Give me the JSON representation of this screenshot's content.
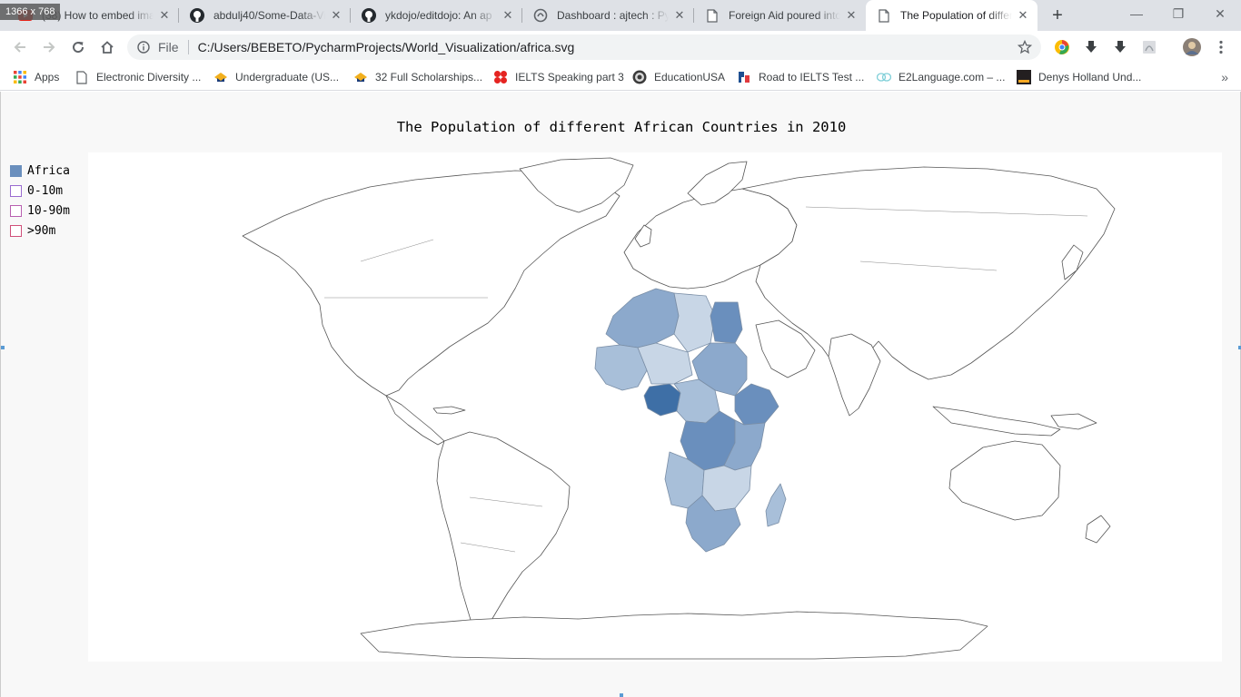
{
  "window": {
    "size_badge": "1366 x 768",
    "new_tab_label": "+",
    "minimize_label": "—",
    "maximize_label": "❐",
    "close_label": "✕"
  },
  "tabs": [
    {
      "title": "(38) How to embed ima",
      "icon": "youtube-icon"
    },
    {
      "title": "abdulj40/Some-Data-Vi",
      "icon": "github-icon"
    },
    {
      "title": "ykdojo/editdojo: An ap",
      "icon": "github-icon"
    },
    {
      "title": "Dashboard : ajtech : Pyt",
      "icon": "pythonanywhere-icon"
    },
    {
      "title": "Foreign Aid poured into",
      "icon": "page-icon"
    },
    {
      "title": "The Population of differ",
      "icon": "page-icon",
      "active": true
    }
  ],
  "toolbar": {
    "scheme_label": "File",
    "url": "C:/Users/BEBETO/PycharmProjects/World_Visualization/africa.svg"
  },
  "bookmarks": [
    {
      "label": "Apps",
      "icon": "apps-grid-icon"
    },
    {
      "label": "Electronic Diversity ...",
      "icon": "page-icon"
    },
    {
      "label": "Undergraduate (US...",
      "icon": "scholarship-icon"
    },
    {
      "label": "32 Full Scholarships...",
      "icon": "scholarship-icon"
    },
    {
      "label": "IELTS Speaking part 3",
      "icon": "ielts-icon"
    },
    {
      "label": "EducationUSA",
      "icon": "seal-icon"
    },
    {
      "label": "Road to IELTS Test ...",
      "icon": "road-icon"
    },
    {
      "label": "E2Language.com – ...",
      "icon": "e2-icon"
    },
    {
      "label": "Denys Holland Und...",
      "icon": "uol-icon"
    }
  ],
  "bookmarks_more": "»",
  "chart": {
    "title": "The Population of different African Countries in 2010",
    "legend": [
      {
        "label": "Africa",
        "color": "#6a8fbd",
        "filled": true
      },
      {
        "label": "0-10m",
        "color": "#9a6bd0",
        "filled": false
      },
      {
        "label": "10-90m",
        "color": "#b85fb0",
        "filled": false
      },
      {
        "label": ">90m",
        "color": "#d04f7a",
        "filled": false
      }
    ]
  },
  "colors": {
    "africa_light": "#c8d6e6",
    "africa_mid_light": "#a8bfd9",
    "africa_mid": "#8ca9cc",
    "africa_dark": "#6a8fbd",
    "nigeria": "#3e6fa6",
    "land_stroke": "#555555"
  }
}
